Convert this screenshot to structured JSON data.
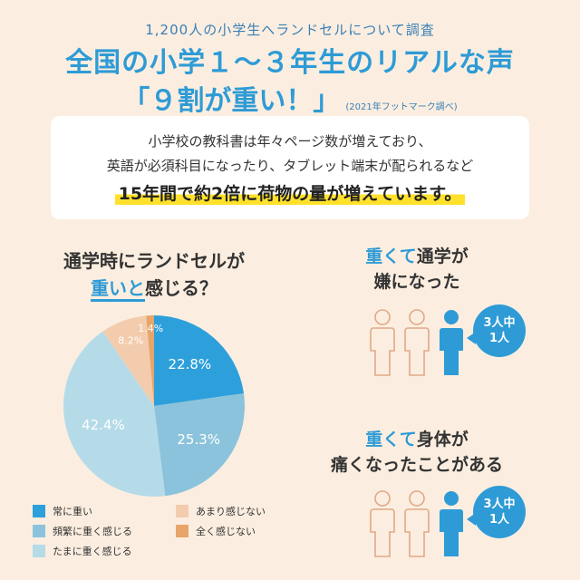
{
  "header": {
    "subtitle": "1,200人の小学生へランドセルについて調査",
    "title_line1": "全国の小学１～３年生のリアルな声",
    "title_line2": "「９割が重い！」",
    "source": "(2021年フットマーク調べ)"
  },
  "intro": {
    "line1": "小学校の教科書は年々ページ数が増えており、",
    "line2": "英語が必須科目になったり、タブレット端末が配られるなど",
    "highlight": "15年間で約2倍に荷物の量が増えています。"
  },
  "question": {
    "line1": "通学時にランドセルが",
    "line2_emph": "重いと",
    "line2_rest": "感じる？"
  },
  "chart_data": {
    "type": "pie",
    "title": "通学時にランドセルが重いと感じる？",
    "slices": [
      {
        "label": "常に重い",
        "value": 22.8,
        "display": "22.8%",
        "color": "#2da0dc"
      },
      {
        "label": "頻繁に重く感じる",
        "value": 25.3,
        "display": "25.3%",
        "color": "#8cc3dc"
      },
      {
        "label": "たまに重く感じる",
        "value": 42.4,
        "display": "42.4%",
        "color": "#b5dbe9"
      },
      {
        "label": "あまり感じない",
        "value": 8.2,
        "display": "8.2%",
        "color": "#f3ccad"
      },
      {
        "label": "全く感じない",
        "value": 1.4,
        "display": "1.4%",
        "color": "#e8a56a"
      }
    ],
    "start_angle_deg": 0,
    "direction": "clockwise",
    "legend_position": "bottom"
  },
  "stat1": {
    "line1_emph": "重くて",
    "line1_rest": "通学が",
    "line2": "嫌になった",
    "bubble_line1": "3人中",
    "bubble_line2": "1人"
  },
  "stat2": {
    "line1_emph": "重くて",
    "line1_rest": "身体が",
    "line2": "痛くなったことがある",
    "bubble_line1": "3人中",
    "bubble_line2": "1人"
  },
  "colors": {
    "accent_blue": "#2e9bd6",
    "background": "#fbeee0",
    "figure_outline": "#e2a886",
    "highlight_yellow": "#ffe12b"
  },
  "icons": [
    "person-outline-icon",
    "person-filled-icon"
  ]
}
